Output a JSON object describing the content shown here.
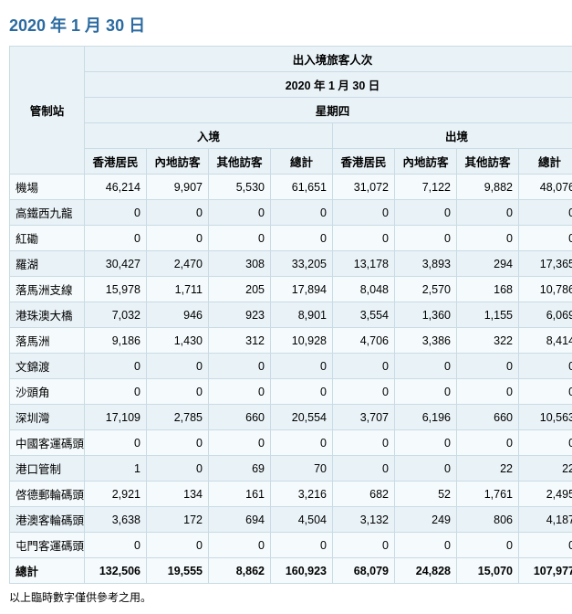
{
  "title": "2020 年 1 月 30 日",
  "header": {
    "control_point": "管制站",
    "passenger_traffic": "出入境旅客人次",
    "date": "2020 年 1 月 30 日",
    "weekday": "星期四",
    "arrival": "入境",
    "departure": "出境",
    "cols": {
      "hk_res": "香港居民",
      "mainland": "內地訪客",
      "other": "其他訪客",
      "total": "總計"
    }
  },
  "rows": [
    {
      "label": "機場",
      "a": [
        46214,
        9907,
        5530,
        61651
      ],
      "d": [
        31072,
        7122,
        9882,
        48076
      ]
    },
    {
      "label": "高鐵西九龍",
      "a": [
        0,
        0,
        0,
        0
      ],
      "d": [
        0,
        0,
        0,
        0
      ]
    },
    {
      "label": "紅磡",
      "a": [
        0,
        0,
        0,
        0
      ],
      "d": [
        0,
        0,
        0,
        0
      ]
    },
    {
      "label": "羅湖",
      "a": [
        30427,
        2470,
        308,
        33205
      ],
      "d": [
        13178,
        3893,
        294,
        17365
      ]
    },
    {
      "label": "落馬洲支線",
      "a": [
        15978,
        1711,
        205,
        17894
      ],
      "d": [
        8048,
        2570,
        168,
        10786
      ]
    },
    {
      "label": "港珠澳大橋",
      "a": [
        7032,
        946,
        923,
        8901
      ],
      "d": [
        3554,
        1360,
        1155,
        6069
      ]
    },
    {
      "label": "落馬洲",
      "a": [
        9186,
        1430,
        312,
        10928
      ],
      "d": [
        4706,
        3386,
        322,
        8414
      ]
    },
    {
      "label": "文錦渡",
      "a": [
        0,
        0,
        0,
        0
      ],
      "d": [
        0,
        0,
        0,
        0
      ]
    },
    {
      "label": "沙頭角",
      "a": [
        0,
        0,
        0,
        0
      ],
      "d": [
        0,
        0,
        0,
        0
      ]
    },
    {
      "label": "深圳灣",
      "a": [
        17109,
        2785,
        660,
        20554
      ],
      "d": [
        3707,
        6196,
        660,
        10563
      ]
    },
    {
      "label": "中國客運碼頭",
      "a": [
        0,
        0,
        0,
        0
      ],
      "d": [
        0,
        0,
        0,
        0
      ]
    },
    {
      "label": "港口管制",
      "a": [
        1,
        0,
        69,
        70
      ],
      "d": [
        0,
        0,
        22,
        22
      ]
    },
    {
      "label": "啓德郵輪碼頭",
      "a": [
        2921,
        134,
        161,
        3216
      ],
      "d": [
        682,
        52,
        1761,
        2495
      ]
    },
    {
      "label": "港澳客輪碼頭",
      "a": [
        3638,
        172,
        694,
        4504
      ],
      "d": [
        3132,
        249,
        806,
        4187
      ]
    },
    {
      "label": "屯門客運碼頭",
      "a": [
        0,
        0,
        0,
        0
      ],
      "d": [
        0,
        0,
        0,
        0
      ]
    }
  ],
  "total": {
    "label": "總計",
    "a": [
      132506,
      19555,
      8862,
      160923
    ],
    "d": [
      68079,
      24828,
      15070,
      107977
    ]
  },
  "footnote": "以上臨時數字僅供參考之用。"
}
